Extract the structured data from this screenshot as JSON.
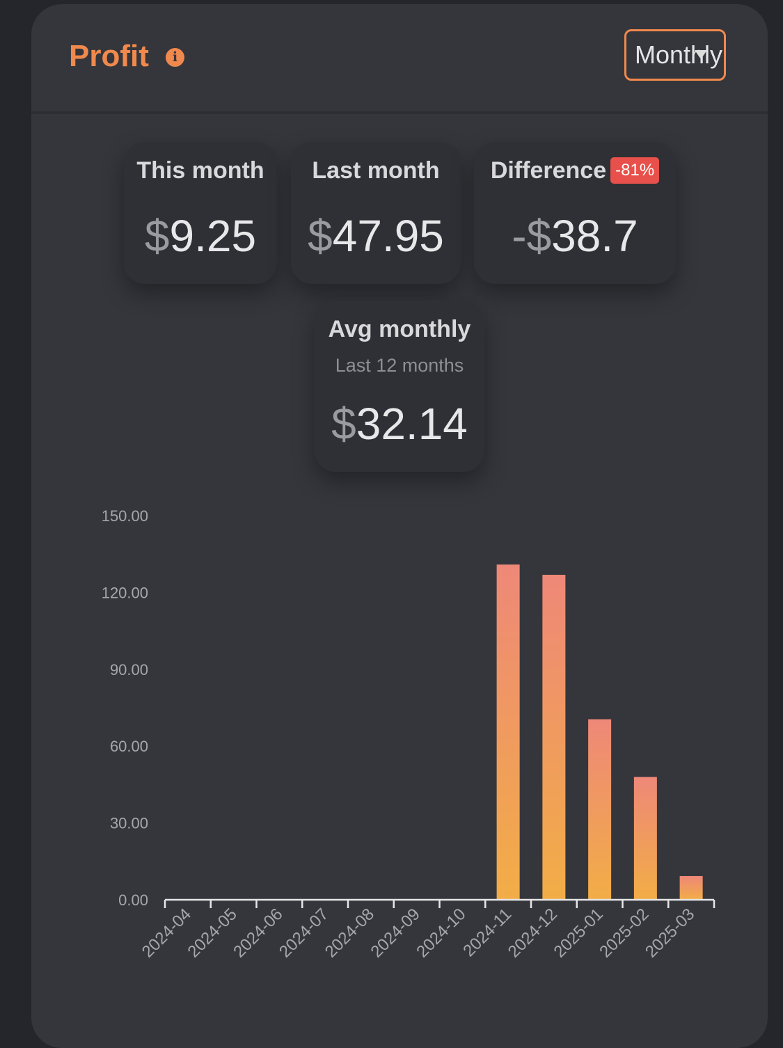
{
  "header": {
    "title": "Profit",
    "info_icon": "info-icon",
    "period_select": "Monthly"
  },
  "stats": {
    "this_month": {
      "label": "This month",
      "currency": "$",
      "amount": "9.25"
    },
    "last_month": {
      "label": "Last month",
      "currency": "$",
      "amount": "47.95"
    },
    "difference": {
      "label": "Difference",
      "badge": "-81%",
      "sign": "-",
      "currency": "$",
      "amount": "38.7"
    },
    "avg_monthly": {
      "label": "Avg monthly",
      "sublabel": "Last 12 months",
      "currency": "$",
      "amount": "32.14"
    }
  },
  "colors": {
    "accent": "#f0894d",
    "badge": "#e8514b",
    "bar_top": "#ee8878",
    "bar_bottom": "#f2ad46"
  },
  "chart_data": {
    "type": "bar",
    "categories": [
      "2024-04",
      "2024-05",
      "2024-06",
      "2024-07",
      "2024-08",
      "2024-09",
      "2024-10",
      "2024-11",
      "2024-12",
      "2025-01",
      "2025-02",
      "2025-03"
    ],
    "values": [
      0,
      0,
      0,
      0,
      0,
      0,
      0,
      130.9,
      126.9,
      70.5,
      47.95,
      9.25
    ],
    "yticks": [
      "0.00",
      "30.00",
      "60.00",
      "90.00",
      "120.00",
      "150.00"
    ],
    "ylim": [
      0,
      150
    ],
    "grid": false,
    "legend": "none"
  }
}
